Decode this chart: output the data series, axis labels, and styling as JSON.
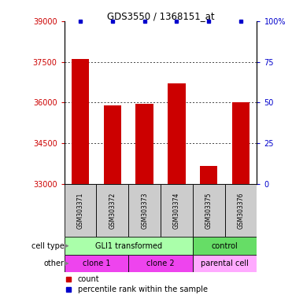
{
  "title": "GDS3550 / 1368151_at",
  "samples": [
    "GSM303371",
    "GSM303372",
    "GSM303373",
    "GSM303374",
    "GSM303375",
    "GSM303376"
  ],
  "bar_values": [
    37600,
    35900,
    35950,
    36700,
    33650,
    36000
  ],
  "percentile_values": [
    100,
    100,
    100,
    100,
    100,
    100
  ],
  "bar_color": "#cc0000",
  "dot_color": "#0000cc",
  "ylim_left": [
    33000,
    39000
  ],
  "ylim_right": [
    0,
    100
  ],
  "yticks_left": [
    33000,
    34500,
    36000,
    37500,
    39000
  ],
  "yticks_right": [
    0,
    25,
    50,
    75,
    100
  ],
  "ytick_labels_left": [
    "33000",
    "34500",
    "36000",
    "37500",
    "39000"
  ],
  "ytick_labels_right": [
    "0",
    "25",
    "50",
    "75",
    "100%"
  ],
  "cell_type_labels": [
    {
      "text": "GLI1 transformed",
      "start": 0,
      "end": 4,
      "color": "#aaffaa"
    },
    {
      "text": "control",
      "start": 4,
      "end": 6,
      "color": "#66dd66"
    }
  ],
  "other_labels": [
    {
      "text": "clone 1",
      "start": 0,
      "end": 2,
      "color": "#ee44ee"
    },
    {
      "text": "clone 2",
      "start": 2,
      "end": 4,
      "color": "#ee44ee"
    },
    {
      "text": "parental cell",
      "start": 4,
      "end": 6,
      "color": "#ffaaff"
    }
  ],
  "row_label_cell_type": "cell type",
  "row_label_other": "other",
  "legend_count_color": "#cc0000",
  "legend_dot_color": "#0000cc",
  "legend_count_label": "count",
  "legend_dot_label": "percentile rank within the sample",
  "bar_width": 0.55,
  "sample_box_color": "#cccccc"
}
